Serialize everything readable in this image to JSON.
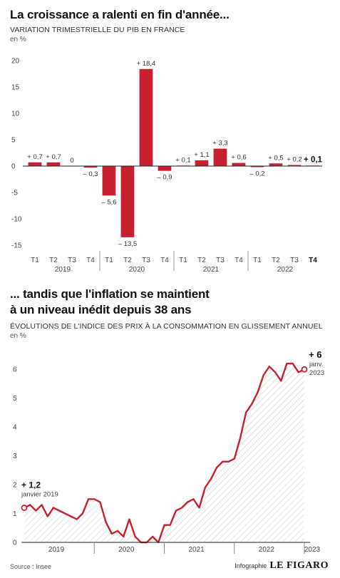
{
  "chart1_header": {
    "title": "La croissance a ralenti en fin d'année...",
    "subtitle": "VARIATION TRIMESTRIELLE DU PIB EN FRANCE",
    "unit": "en %"
  },
  "chart2_header": {
    "title_line1": "... tandis que l'inflation se maintient",
    "title_line2": "à un niveau inédit depuis 38 ans",
    "subtitle": "ÉVOLUTIONS DE L'INDICE DES PRIX À LA CONSOMMATION EN GLISSEMENT ANNUEL",
    "unit": "en %"
  },
  "footer": {
    "source": "Source : Insee",
    "credit_label": "Infographie",
    "credit_brand": "LE FIGARO"
  },
  "colors": {
    "bar": "#c8202f",
    "line": "#c8202f",
    "axis": "#222222",
    "text": "#333333"
  },
  "chart_data": [
    {
      "type": "bar",
      "ylim": [
        -15,
        20
      ],
      "yticks": [
        "20",
        "15",
        "10",
        "5",
        "0",
        "-5",
        "-10",
        "-15"
      ],
      "categories": [
        "T1",
        "T2",
        "T3",
        "T4",
        "T1",
        "T2",
        "T3",
        "T4",
        "T1",
        "T2",
        "T3",
        "T4",
        "T1",
        "T2",
        "T3",
        "T4"
      ],
      "year_labels": [
        "2019",
        "2020",
        "2021",
        "2022"
      ],
      "values": [
        0.7,
        0.7,
        0,
        -0.3,
        -5.6,
        -13.5,
        18.4,
        -0.9,
        0.1,
        1.1,
        3.3,
        0.6,
        -0.2,
        0.5,
        0.2,
        0.1
      ],
      "value_labels": [
        "+ 0,7",
        "+ 0,7",
        "0",
        "– 0,3",
        "– 5,6",
        "– 13,5",
        "+ 18,4",
        "– 0,9",
        "+ 0,1",
        "+ 1,1",
        "+ 3,3",
        "+ 0,6",
        "– 0,2",
        "+ 0,5",
        "+ 0,2",
        "+ 0,1"
      ],
      "highlighted_index": 15
    },
    {
      "type": "area",
      "ylim": [
        0,
        6.5
      ],
      "yticks": [
        "0",
        "1",
        "2",
        "3",
        "4",
        "5",
        "6"
      ],
      "x_start": "2019-01",
      "year_labels": [
        "2019",
        "2020",
        "2021",
        "2022",
        "2023"
      ],
      "values": [
        1.2,
        1.3,
        1.1,
        1.3,
        0.9,
        1.2,
        1.1,
        1.0,
        0.9,
        0.8,
        1.0,
        1.5,
        1.5,
        1.4,
        0.7,
        0.3,
        0.4,
        0.2,
        0.8,
        0.2,
        0.0,
        0.0,
        0.2,
        0.0,
        0.6,
        0.6,
        1.1,
        1.2,
        1.4,
        1.5,
        1.2,
        1.9,
        2.2,
        2.6,
        2.8,
        2.8,
        2.9,
        3.6,
        4.5,
        4.8,
        5.2,
        5.8,
        6.1,
        5.9,
        5.6,
        6.2,
        6.2,
        5.9,
        6.0
      ],
      "start_annotation": {
        "value": "+ 1,2",
        "label": "janvier 2019"
      },
      "end_annotation": {
        "value": "+ 6",
        "label_line1": "janv.",
        "label_line2": "2023"
      }
    }
  ]
}
